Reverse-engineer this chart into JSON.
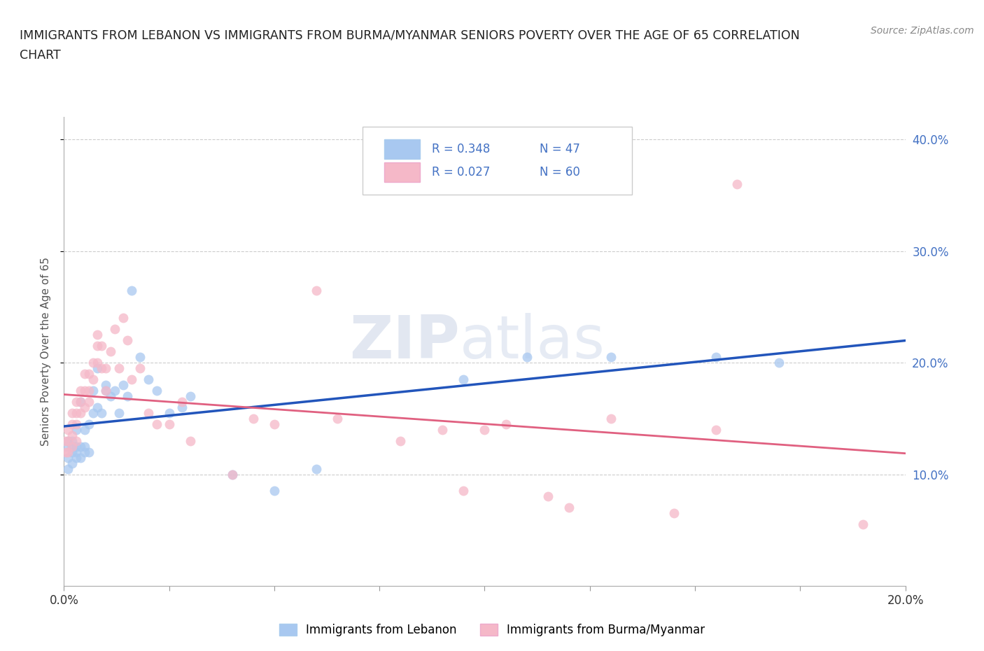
{
  "title_line1": "IMMIGRANTS FROM LEBANON VS IMMIGRANTS FROM BURMA/MYANMAR SENIORS POVERTY OVER THE AGE OF 65 CORRELATION",
  "title_line2": "CHART",
  "source": "Source: ZipAtlas.com",
  "ylabel": "Seniors Poverty Over the Age of 65",
  "xlim": [
    0.0,
    0.2
  ],
  "ylim": [
    0.0,
    0.42
  ],
  "xticks": [
    0.0,
    0.025,
    0.05,
    0.075,
    0.1,
    0.125,
    0.15,
    0.175,
    0.2
  ],
  "xtick_labels_shown": {
    "0.0": "0.0%",
    "0.20": "20.0%"
  },
  "yticks": [
    0.1,
    0.2,
    0.3,
    0.4
  ],
  "ytick_labels_right": [
    "10.0%",
    "20.0%",
    "30.0%",
    "40.0%"
  ],
  "legend_R1": "R = 0.348",
  "legend_N1": "N = 47",
  "legend_R2": "R = 0.027",
  "legend_N2": "N = 60",
  "color_lebanon": "#a8c8f0",
  "color_burma": "#f5b8c8",
  "color_lebanon_line": "#2255bb",
  "color_burma_line": "#e06080",
  "lebanon_x": [
    0.0005,
    0.001,
    0.001,
    0.001,
    0.002,
    0.002,
    0.002,
    0.002,
    0.003,
    0.003,
    0.003,
    0.003,
    0.004,
    0.004,
    0.004,
    0.005,
    0.005,
    0.005,
    0.006,
    0.006,
    0.007,
    0.007,
    0.008,
    0.008,
    0.009,
    0.01,
    0.01,
    0.011,
    0.012,
    0.013,
    0.014,
    0.015,
    0.016,
    0.018,
    0.02,
    0.022,
    0.025,
    0.028,
    0.03,
    0.04,
    0.05,
    0.06,
    0.095,
    0.11,
    0.13,
    0.155,
    0.17
  ],
  "lebanon_y": [
    0.125,
    0.13,
    0.115,
    0.105,
    0.12,
    0.11,
    0.13,
    0.125,
    0.14,
    0.12,
    0.115,
    0.125,
    0.165,
    0.125,
    0.115,
    0.14,
    0.125,
    0.12,
    0.145,
    0.12,
    0.175,
    0.155,
    0.195,
    0.16,
    0.155,
    0.18,
    0.175,
    0.17,
    0.175,
    0.155,
    0.18,
    0.17,
    0.265,
    0.205,
    0.185,
    0.175,
    0.155,
    0.16,
    0.17,
    0.1,
    0.085,
    0.105,
    0.185,
    0.205,
    0.205,
    0.205,
    0.2
  ],
  "burma_x": [
    0.0003,
    0.0005,
    0.001,
    0.001,
    0.001,
    0.002,
    0.002,
    0.002,
    0.002,
    0.003,
    0.003,
    0.003,
    0.003,
    0.004,
    0.004,
    0.004,
    0.005,
    0.005,
    0.005,
    0.006,
    0.006,
    0.006,
    0.007,
    0.007,
    0.008,
    0.008,
    0.008,
    0.009,
    0.009,
    0.01,
    0.01,
    0.011,
    0.012,
    0.013,
    0.014,
    0.015,
    0.016,
    0.018,
    0.02,
    0.022,
    0.025,
    0.028,
    0.03,
    0.04,
    0.045,
    0.05,
    0.06,
    0.065,
    0.08,
    0.09,
    0.095,
    0.1,
    0.105,
    0.115,
    0.12,
    0.13,
    0.145,
    0.155,
    0.16,
    0.19
  ],
  "burma_y": [
    0.13,
    0.12,
    0.14,
    0.13,
    0.12,
    0.155,
    0.145,
    0.135,
    0.125,
    0.165,
    0.155,
    0.145,
    0.13,
    0.175,
    0.165,
    0.155,
    0.19,
    0.175,
    0.16,
    0.19,
    0.175,
    0.165,
    0.2,
    0.185,
    0.225,
    0.215,
    0.2,
    0.215,
    0.195,
    0.195,
    0.175,
    0.21,
    0.23,
    0.195,
    0.24,
    0.22,
    0.185,
    0.195,
    0.155,
    0.145,
    0.145,
    0.165,
    0.13,
    0.1,
    0.15,
    0.145,
    0.265,
    0.15,
    0.13,
    0.14,
    0.085,
    0.14,
    0.145,
    0.08,
    0.07,
    0.15,
    0.065,
    0.14,
    0.36,
    0.055
  ],
  "background_color": "#ffffff",
  "grid_color": "#cccccc",
  "right_yaxis_color": "#4472c4"
}
